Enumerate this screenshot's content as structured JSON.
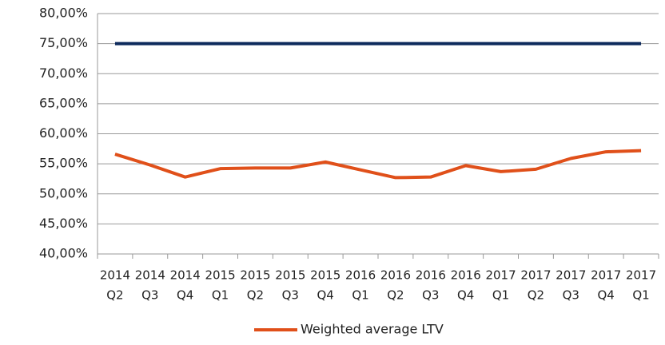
{
  "chart_data": {
    "type": "line",
    "categories": [
      [
        "2014",
        "Q2"
      ],
      [
        "2014",
        "Q3"
      ],
      [
        "2014",
        "Q4"
      ],
      [
        "2015",
        "Q1"
      ],
      [
        "2015",
        "Q2"
      ],
      [
        "2015",
        "Q3"
      ],
      [
        "2015",
        "Q4"
      ],
      [
        "2016",
        "Q1"
      ],
      [
        "2016",
        "Q2"
      ],
      [
        "2016",
        "Q3"
      ],
      [
        "2016",
        "Q4"
      ],
      [
        "2017",
        "Q1"
      ],
      [
        "2017",
        "Q2"
      ],
      [
        "2017",
        "Q3"
      ],
      [
        "2017",
        "Q4"
      ],
      [
        "2017",
        "Q1"
      ]
    ],
    "series": [
      {
        "color": "#0d2a5c",
        "values": [
          75,
          75,
          75,
          75,
          75,
          75,
          75,
          75,
          75,
          75,
          75,
          75,
          75,
          75,
          75,
          75
        ]
      },
      {
        "name": "Weighted average LTV",
        "color": "#e0501a",
        "values": [
          56.6,
          54.8,
          52.8,
          54.2,
          54.3,
          54.3,
          55.3,
          54.0,
          52.7,
          52.8,
          54.7,
          53.7,
          54.1,
          55.9,
          57.0,
          57.2
        ]
      }
    ],
    "ylim": [
      40,
      80
    ],
    "yticks": [
      {
        "value": 40,
        "label": "40,00%"
      },
      {
        "value": 45,
        "label": "45,00%"
      },
      {
        "value": 50,
        "label": "50,00%"
      },
      {
        "value": 55,
        "label": "55,00%"
      },
      {
        "value": 60,
        "label": "60,00%"
      },
      {
        "value": 65,
        "label": "65,00%"
      },
      {
        "value": 70,
        "label": "70,00%"
      },
      {
        "value": 75,
        "label": "75,00%"
      },
      {
        "value": 80,
        "label": "80,00%"
      }
    ],
    "grid": true
  }
}
